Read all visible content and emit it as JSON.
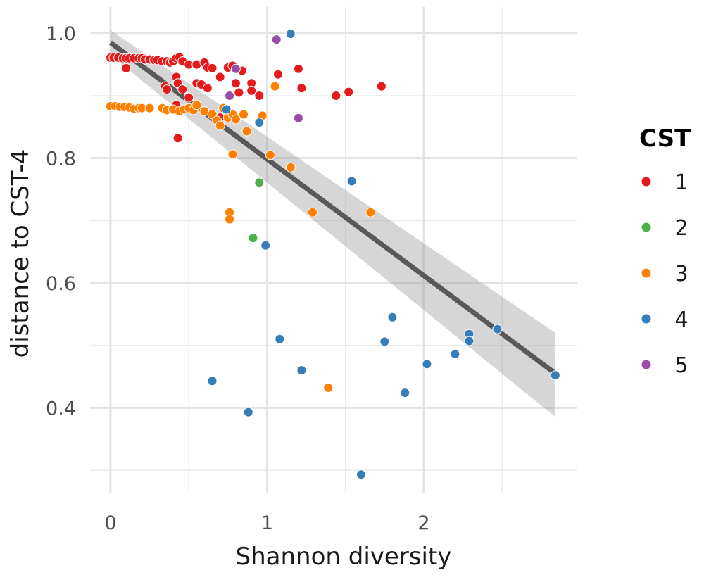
{
  "chart_data": {
    "type": "scatter",
    "xlabel": "Shannon diversity",
    "ylabel": "distance to CST-4",
    "xlim": [
      -0.13,
      2.98
    ],
    "ylim": [
      0.264,
      1.042
    ],
    "xticks": [
      0,
      1,
      2
    ],
    "yticks": [
      0.4,
      0.6,
      0.8,
      1.0
    ],
    "ytick_labels": [
      "0.4",
      "0.6",
      "0.8",
      "1.0"
    ],
    "xtick_labels": [
      "0",
      "1",
      "2"
    ],
    "grid": true,
    "legend": {
      "title": "CST",
      "placement": "right"
    },
    "fit": {
      "type": "linear",
      "x": [
        0,
        2.84
      ],
      "y": [
        0.985,
        0.455
      ],
      "ci_lower": [
        0.965,
        0.385
      ],
      "ci_upper": [
        1.005,
        0.52
      ],
      "color": "#595959"
    },
    "series": [
      {
        "name": "1",
        "color": "#E41A1C",
        "points": [
          [
            0,
            0.961
          ],
          [
            0.02,
            0.961
          ],
          [
            0.05,
            0.961
          ],
          [
            0.08,
            0.96
          ],
          [
            0.1,
            0.96
          ],
          [
            0.12,
            0.96
          ],
          [
            0.15,
            0.96
          ],
          [
            0.18,
            0.96
          ],
          [
            0.2,
            0.96
          ],
          [
            0.22,
            0.958
          ],
          [
            0.25,
            0.958
          ],
          [
            0.28,
            0.957
          ],
          [
            0.3,
            0.957
          ],
          [
            0.33,
            0.955
          ],
          [
            0.36,
            0.955
          ],
          [
            0.38,
            0.953
          ],
          [
            0.4,
            0.955
          ],
          [
            0.42,
            0.96
          ],
          [
            0.44,
            0.962
          ],
          [
            0.46,
            0.955
          ],
          [
            0.5,
            0.95
          ],
          [
            0.55,
            0.95
          ],
          [
            0.6,
            0.953
          ],
          [
            0.62,
            0.945
          ],
          [
            0.65,
            0.944
          ],
          [
            0.1,
            0.944
          ],
          [
            0.35,
            0.915
          ],
          [
            0.36,
            0.91
          ],
          [
            0.42,
            0.93
          ],
          [
            0.43,
            0.92
          ],
          [
            0.46,
            0.91
          ],
          [
            0.5,
            0.897
          ],
          [
            0.55,
            0.92
          ],
          [
            0.58,
            0.918
          ],
          [
            0.62,
            0.912
          ],
          [
            0.42,
            0.885
          ],
          [
            0.43,
            0.832
          ],
          [
            0.7,
            0.865
          ],
          [
            0.7,
            0.93
          ],
          [
            0.75,
            0.945
          ],
          [
            0.78,
            0.948
          ],
          [
            0.8,
            0.92
          ],
          [
            0.82,
            0.905
          ],
          [
            0.84,
            0.94
          ],
          [
            0.9,
            0.92
          ],
          [
            0.9,
            0.908
          ],
          [
            0.95,
            0.9
          ],
          [
            1.07,
            0.934
          ],
          [
            1.2,
            0.943
          ],
          [
            1.22,
            0.912
          ],
          [
            1.44,
            0.9
          ],
          [
            1.52,
            0.906
          ],
          [
            1.73,
            0.915
          ]
        ]
      },
      {
        "name": "2",
        "color": "#4DAF4A",
        "points": [
          [
            0.95,
            0.761
          ],
          [
            0.91,
            0.672
          ]
        ]
      },
      {
        "name": "3",
        "color": "#FF7F00",
        "points": [
          [
            0,
            0.883
          ],
          [
            0.03,
            0.883
          ],
          [
            0.06,
            0.882
          ],
          [
            0.09,
            0.882
          ],
          [
            0.12,
            0.881
          ],
          [
            0.15,
            0.879
          ],
          [
            0.18,
            0.88
          ],
          [
            0.2,
            0.88
          ],
          [
            0.25,
            0.88
          ],
          [
            0.33,
            0.88
          ],
          [
            0.36,
            0.877
          ],
          [
            0.4,
            0.878
          ],
          [
            0.44,
            0.875
          ],
          [
            0.47,
            0.878
          ],
          [
            0.5,
            0.88
          ],
          [
            0.53,
            0.877
          ],
          [
            0.55,
            0.885
          ],
          [
            0.6,
            0.875
          ],
          [
            0.65,
            0.87
          ],
          [
            0.68,
            0.86
          ],
          [
            0.7,
            0.852
          ],
          [
            0.72,
            0.88
          ],
          [
            0.75,
            0.865
          ],
          [
            0.78,
            0.87
          ],
          [
            0.8,
            0.862
          ],
          [
            0.85,
            0.87
          ],
          [
            0.87,
            0.843
          ],
          [
            0.97,
            0.868
          ],
          [
            0.78,
            0.806
          ],
          [
            1.02,
            0.805
          ],
          [
            1.05,
            0.915
          ],
          [
            1.15,
            0.785
          ],
          [
            0.76,
            0.713
          ],
          [
            0.76,
            0.702
          ],
          [
            1.29,
            0.713
          ],
          [
            1.66,
            0.713
          ],
          [
            1.39,
            0.432
          ]
        ]
      },
      {
        "name": "4",
        "color": "#377EB8",
        "points": [
          [
            1.15,
            0.999
          ],
          [
            0.74,
            0.878
          ],
          [
            0.95,
            0.857
          ],
          [
            1.54,
            0.763
          ],
          [
            0.99,
            0.66
          ],
          [
            1.08,
            0.51
          ],
          [
            0.65,
            0.443
          ],
          [
            0.88,
            0.393
          ],
          [
            1.22,
            0.46
          ],
          [
            1.6,
            0.293
          ],
          [
            1.75,
            0.506
          ],
          [
            1.8,
            0.545
          ],
          [
            1.88,
            0.424
          ],
          [
            2.02,
            0.47
          ],
          [
            2.2,
            0.486
          ],
          [
            2.29,
            0.518
          ],
          [
            2.29,
            0.507
          ],
          [
            2.47,
            0.526
          ],
          [
            2.84,
            0.452
          ]
        ]
      },
      {
        "name": "5",
        "color": "#984EA3",
        "points": [
          [
            1.06,
            0.99
          ],
          [
            0.8,
            0.943
          ],
          [
            0.76,
            0.9
          ],
          [
            1.2,
            0.864
          ]
        ]
      }
    ]
  }
}
